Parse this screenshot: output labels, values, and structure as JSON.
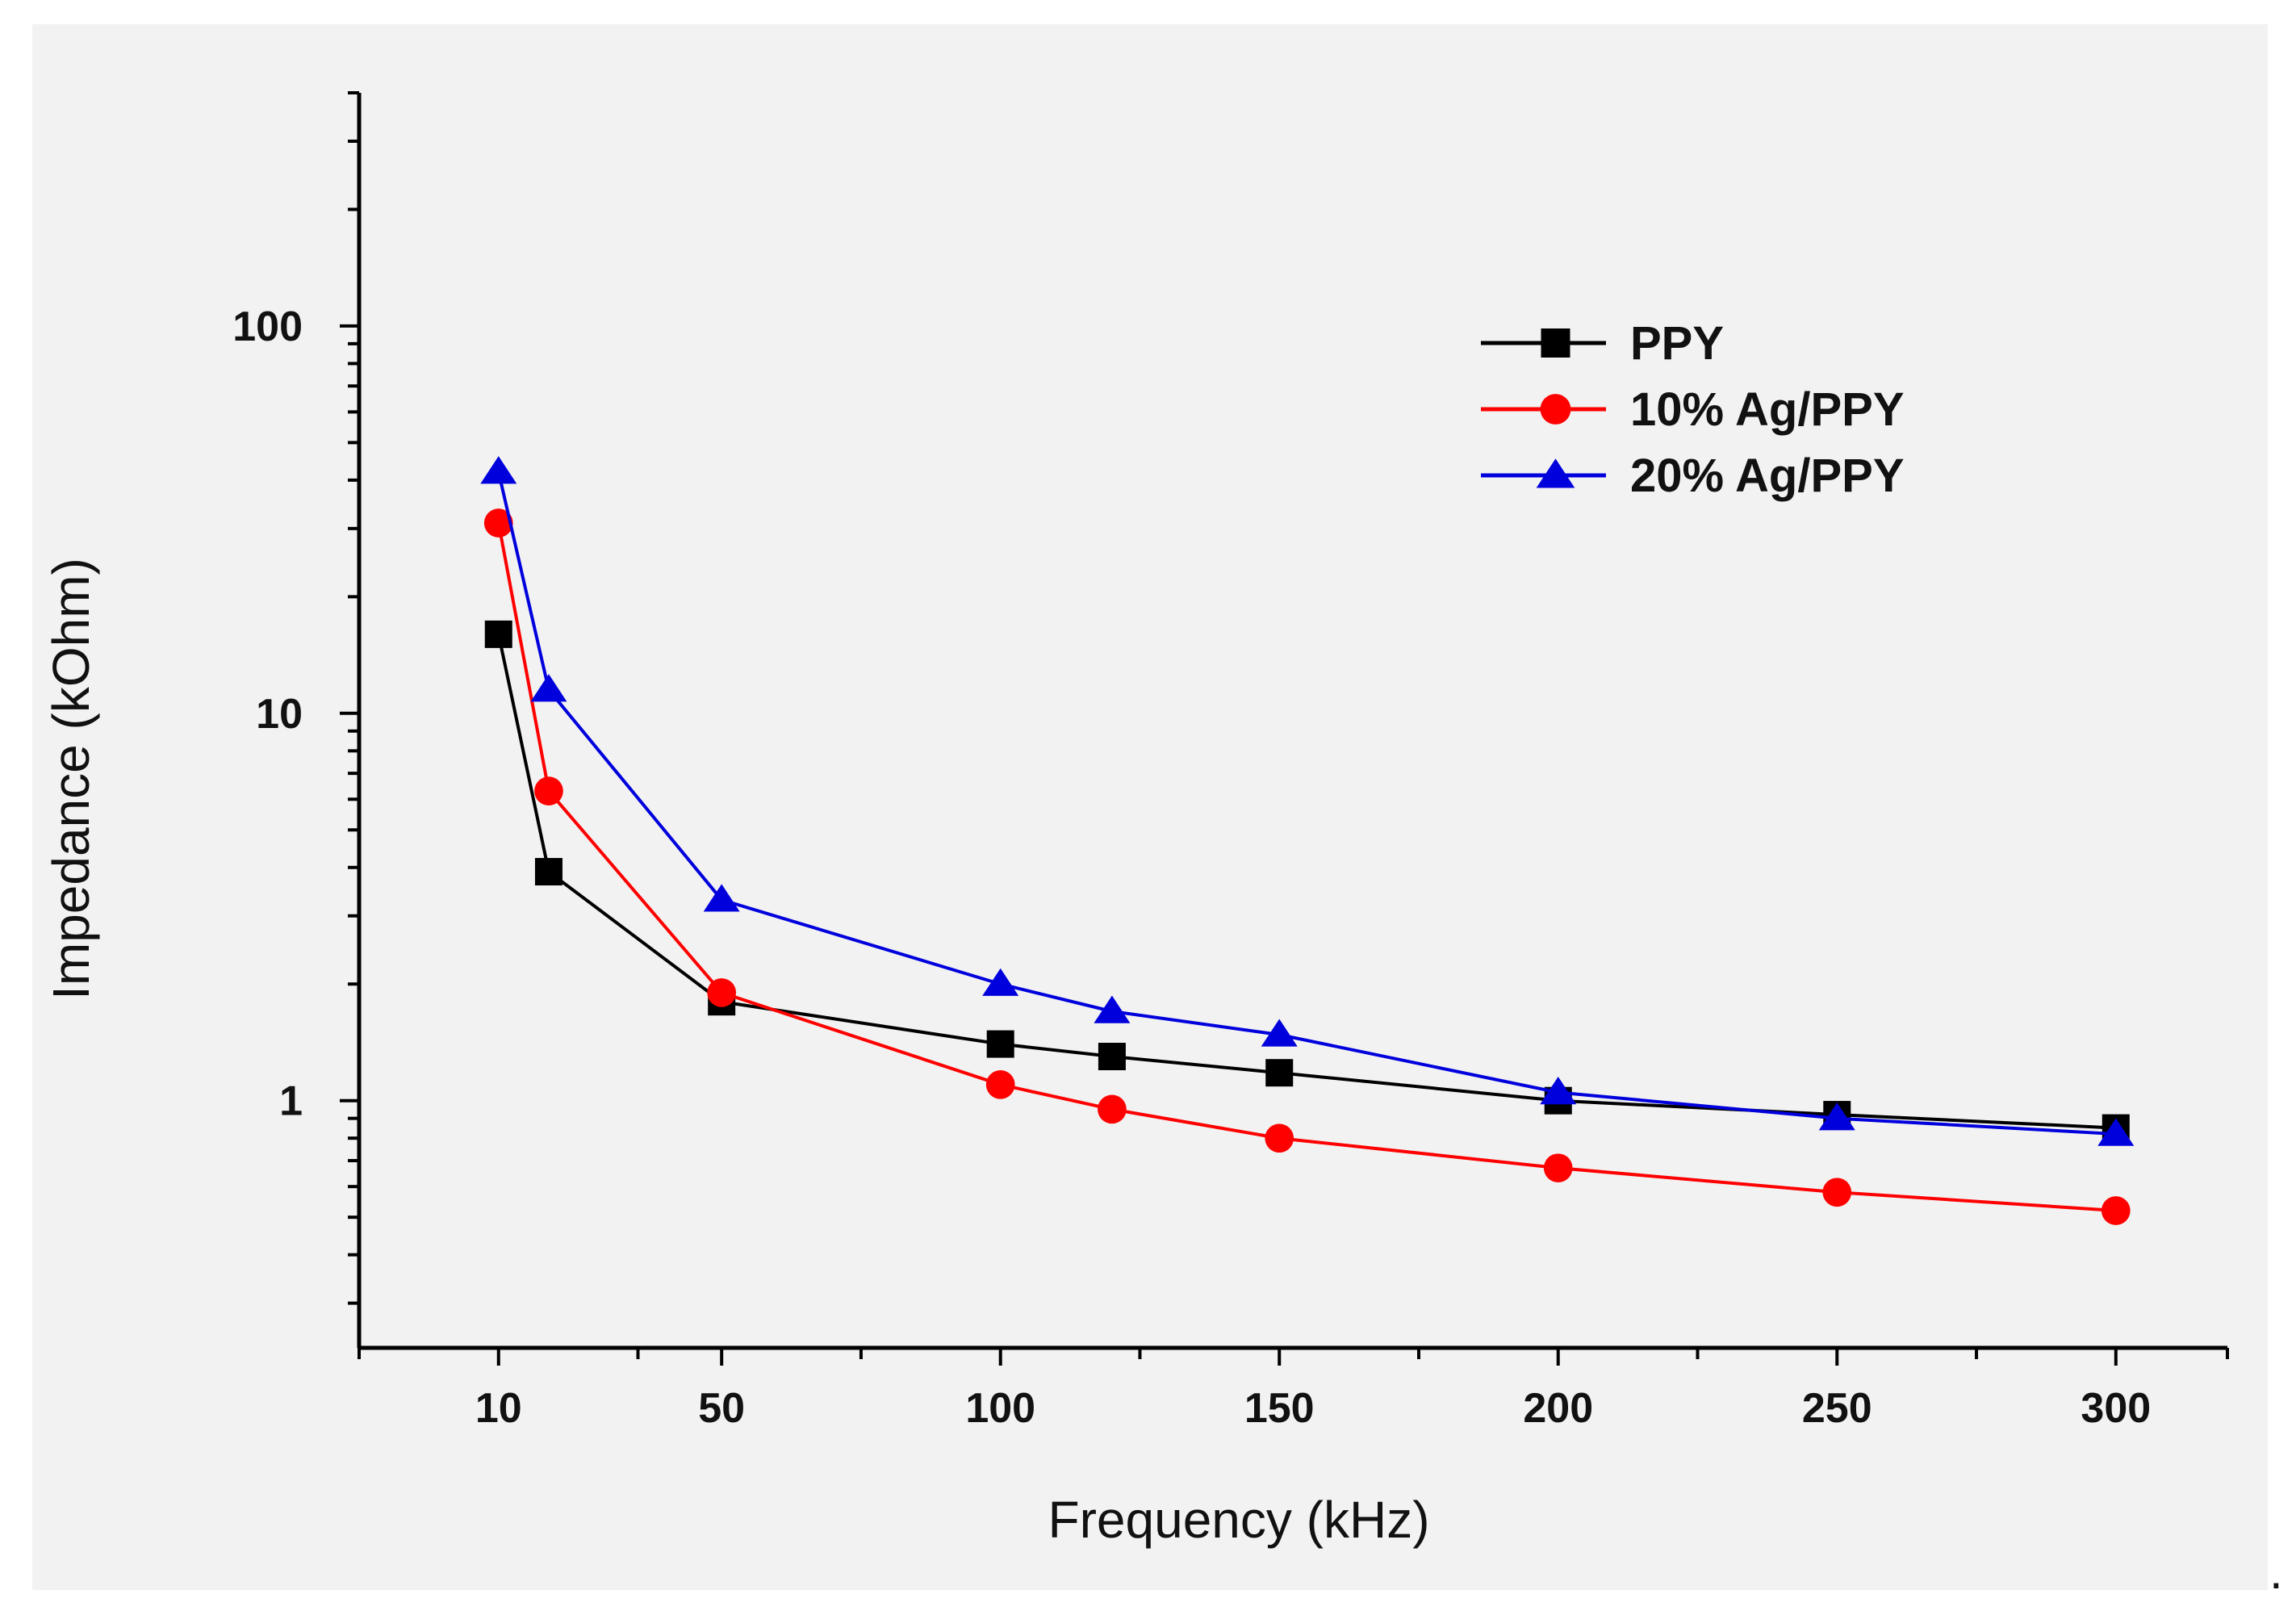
{
  "chart_data": {
    "type": "line",
    "title": "",
    "xlabel": "Frequency (kHz)",
    "ylabel": "Impedance (kOhm)",
    "x_scale": "linear",
    "y_scale": "log",
    "xlim": [
      -15,
      320
    ],
    "ylim": [
      0.23,
      400
    ],
    "x_ticks": [
      10,
      50,
      100,
      150,
      200,
      250,
      300
    ],
    "x_minor_ticks": [
      -15,
      35,
      75,
      125,
      175,
      225,
      275,
      320
    ],
    "y_major_ticks": [
      1,
      10,
      100
    ],
    "y_tick_labels": [
      "1",
      "10",
      "100"
    ],
    "grid": false,
    "legend_position": "top-right",
    "x": [
      10,
      19,
      50,
      100,
      120,
      150,
      200,
      250,
      300
    ],
    "series": [
      {
        "name": "PPY",
        "color": "#000000",
        "marker": "square",
        "values": [
          16,
          3.9,
          1.8,
          1.4,
          1.3,
          1.18,
          1.0,
          0.92,
          0.85
        ]
      },
      {
        "name": "10% Ag/PPY",
        "color": "#ff0000",
        "marker": "circle",
        "values": [
          31,
          6.3,
          1.9,
          1.1,
          0.95,
          0.8,
          0.67,
          0.58,
          0.52
        ]
      },
      {
        "name": "20% Ag/PPY",
        "color": "#0000dd",
        "marker": "triangle",
        "values": [
          42,
          11.5,
          3.3,
          2.0,
          1.7,
          1.48,
          1.05,
          0.9,
          0.82
        ]
      }
    ]
  },
  "trailing_mark": "."
}
